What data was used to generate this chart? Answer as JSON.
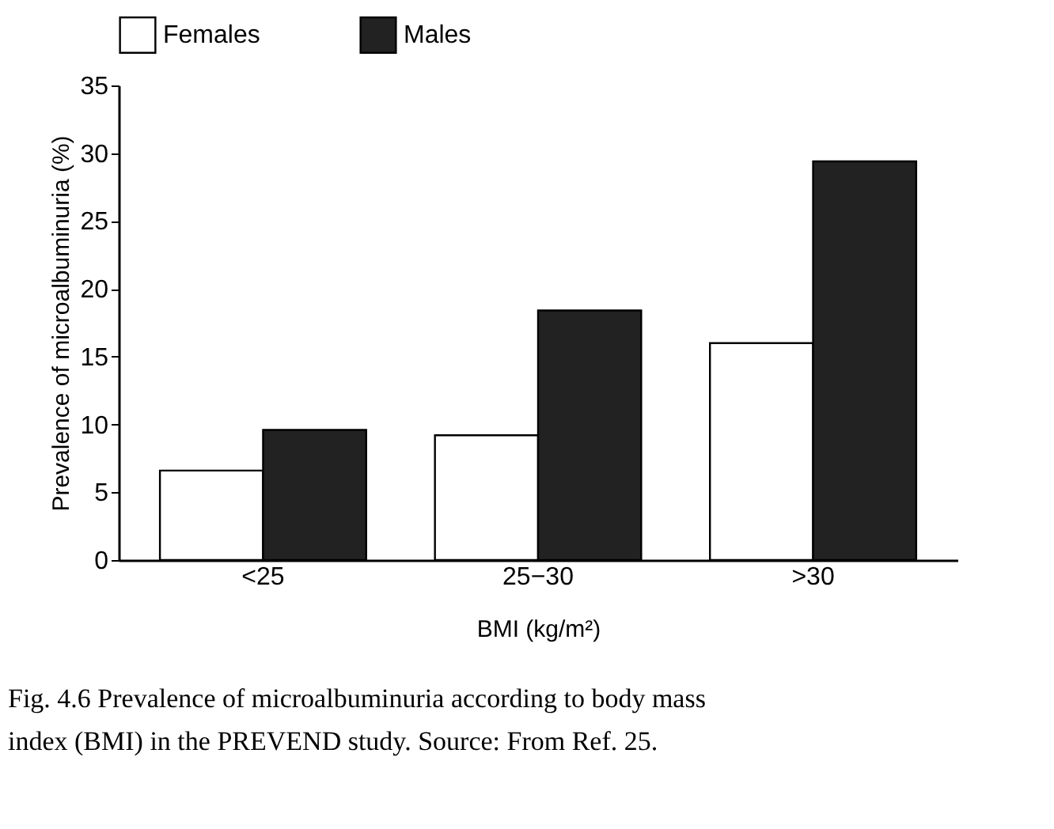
{
  "chart_data": {
    "type": "bar",
    "categories": [
      "<25",
      "25−30",
      ">30"
    ],
    "series": [
      {
        "name": "Females",
        "color": "#ffffff",
        "values": [
          6.6,
          9.2,
          16.0
        ]
      },
      {
        "name": "Males",
        "color": "#222222",
        "values": [
          9.6,
          18.4,
          29.4
        ]
      }
    ],
    "xlabel": "BMI (kg/m²)",
    "ylabel": "Prevalence of microalbuminuria (%)",
    "ylim": [
      0,
      35
    ],
    "yticks": [
      0,
      5,
      10,
      15,
      20,
      25,
      30,
      35
    ],
    "grid": false,
    "legend": "top",
    "annotations": [
      "Fig. 4.6 Prevalence of microalbuminuria according to body mass index (BMI) in the PREVEND study. Source: From Ref. 25."
    ]
  }
}
